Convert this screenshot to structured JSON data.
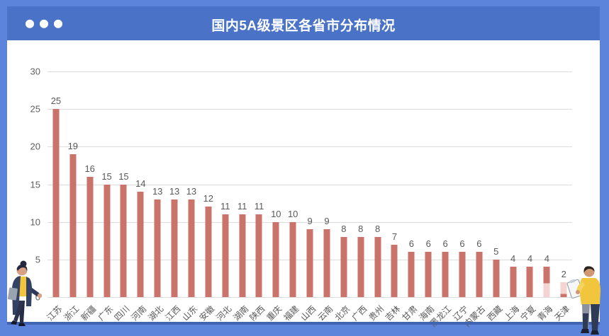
{
  "window": {
    "title": "国内5A级景区各省市分布情况",
    "controls": [
      "dot",
      "dot",
      "dot"
    ]
  },
  "chart_data": {
    "type": "bar",
    "title": "国内5A级景区各省市分布情况",
    "categories": [
      "江苏",
      "浙江",
      "新疆",
      "广东",
      "四川",
      "河南",
      "湖北",
      "江西",
      "山东",
      "安徽",
      "河北",
      "湖南",
      "陕西",
      "重庆",
      "福建",
      "山西",
      "云南",
      "北京",
      "广西",
      "贵州",
      "吉林",
      "甘肃",
      "海南",
      "黑龙江",
      "辽宁",
      "内蒙古",
      "西藏",
      "上海",
      "宁夏",
      "青海",
      "天津"
    ],
    "values": [
      25,
      19,
      16,
      15,
      15,
      14,
      13,
      13,
      13,
      12,
      11,
      11,
      11,
      10,
      10,
      9,
      9,
      8,
      8,
      8,
      7,
      6,
      6,
      6,
      6,
      6,
      5,
      4,
      4,
      4,
      2
    ],
    "xlabel": "",
    "ylabel": "",
    "ylim": [
      0,
      30
    ],
    "yticks": [
      0,
      5,
      10,
      15,
      20,
      25,
      30
    ],
    "grid": true,
    "legend": "none",
    "bar_color": "#c9736b",
    "bar_color_light": "#f3d4d1",
    "partial_render": [
      {
        "category": "青海",
        "solid_segment": "top",
        "solid_pct": 55
      },
      {
        "category": "天津",
        "solid_segment": "bottom",
        "solid_pct": 22
      }
    ]
  },
  "colors": {
    "frame_blue": "#5b84da",
    "header_blue": "#4a73c8",
    "divider_blue": "#4063b2",
    "gridline": "#dddddd",
    "axis_text": "#5f5f5f",
    "value_text": "#595959",
    "title_text": "#ffffff",
    "illustration_yellow": "#f2c63c",
    "illustration_navy": "#2e3a56",
    "illustration_skin": "#cf9873"
  }
}
